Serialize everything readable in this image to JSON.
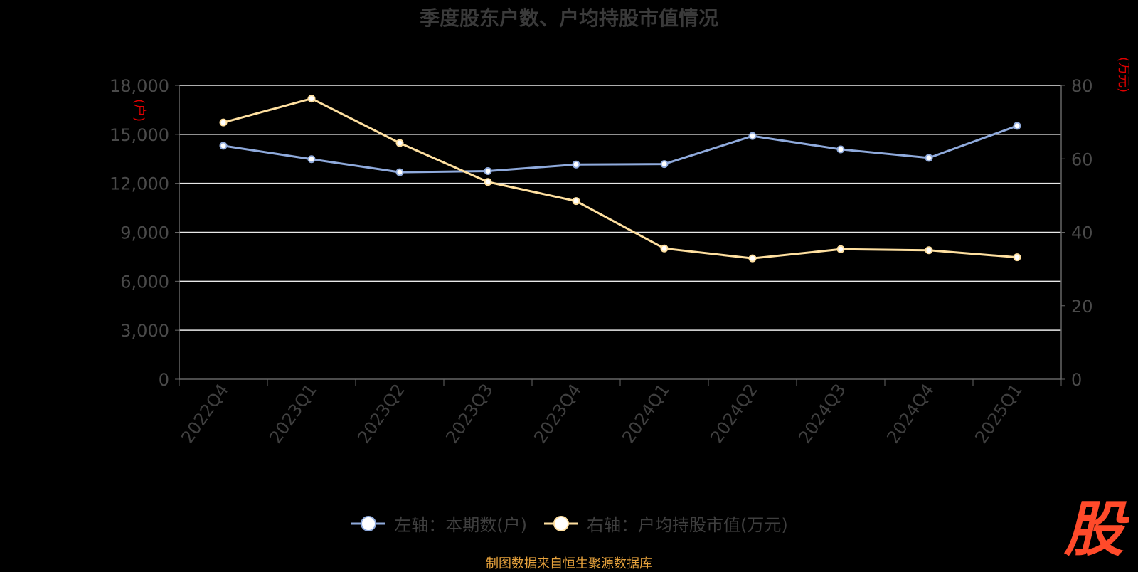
{
  "chart_data": {
    "type": "line",
    "title": "季度股东户数、户均持股市值情况",
    "categories": [
      "2022Q4",
      "2023Q1",
      "2023Q2",
      "2023Q3",
      "2023Q4",
      "2024Q1",
      "2024Q2",
      "2024Q3",
      "2024Q4",
      "2025Q1"
    ],
    "left_axis": {
      "unit": "(户)",
      "min": 0,
      "max": 18000,
      "ticks": [
        "0",
        "3,000",
        "6,000",
        "9,000",
        "12,000",
        "15,000",
        "18,000"
      ]
    },
    "right_axis": {
      "unit": "(万元)",
      "min": 0,
      "max": 80,
      "ticks": [
        "0",
        "20",
        "40",
        "60",
        "80"
      ]
    },
    "series": [
      {
        "name": "左轴：本期数(户)",
        "axis": "left",
        "color": "#8faadc",
        "values": [
          14300,
          13480,
          12680,
          12750,
          13150,
          13180,
          14900,
          14080,
          13560,
          15520
        ]
      },
      {
        "name": "右轴：户均持股市值(万元)",
        "axis": "right",
        "color": "#ffe0a0",
        "values": [
          69.9,
          76.4,
          64.3,
          53.7,
          48.5,
          35.6,
          32.9,
          35.4,
          35.1,
          33.2
        ]
      }
    ],
    "grid": true,
    "legend_position": "bottom"
  },
  "source": "制图数据来自恒生聚源数据库",
  "brand": "股"
}
